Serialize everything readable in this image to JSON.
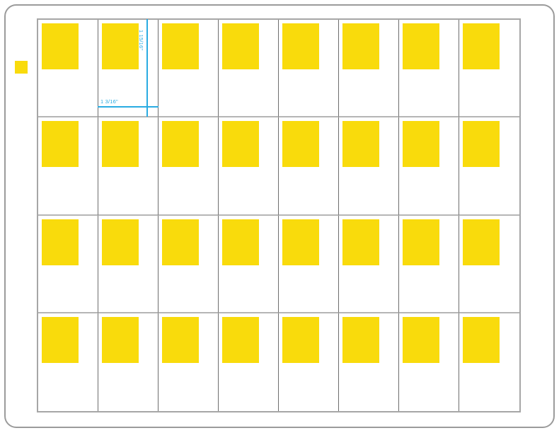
{
  "page": {
    "background": "#ffffff"
  },
  "colors": {
    "page_background": "#ffffff",
    "label_yellow": "#f9db0c",
    "dimension_cyan": "#29abe2",
    "sheet_outline": "#9b9b9b",
    "grid_border": "#a6a6a6",
    "grid_row_line": "#b5b5b5",
    "grid_column_line": "#6e6e6e"
  },
  "grid": {
    "rows": 4,
    "columns": 8
  },
  "dimensions": {
    "height_label": "1 15/16\"",
    "width_label": "1 3/16\""
  }
}
